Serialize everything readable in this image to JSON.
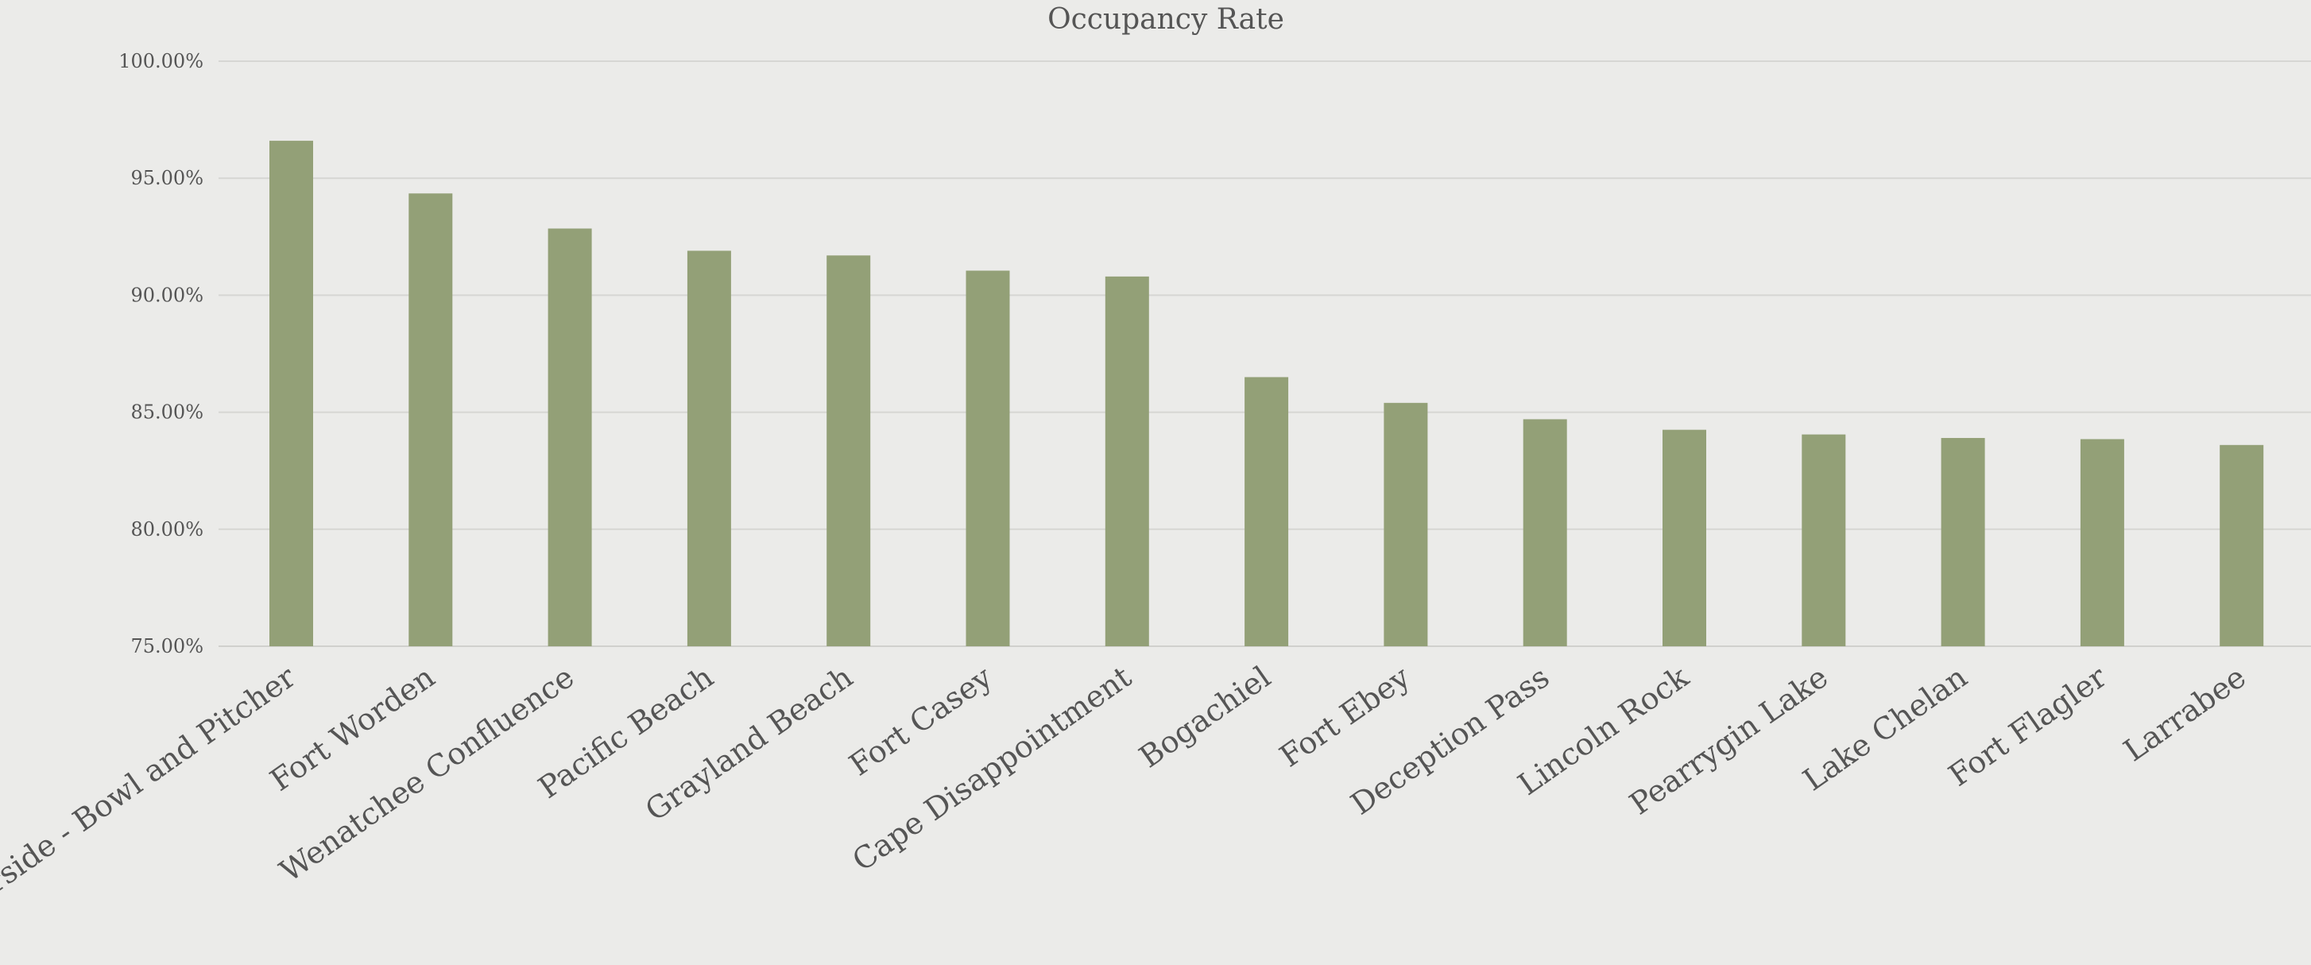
{
  "chart_data": {
    "type": "bar",
    "title": "Occupancy Rate",
    "xlabel": "",
    "ylabel": "",
    "categories": [
      "Riverside - Bowl and Pitcher",
      "Fort Worden",
      "Wenatchee Confluence",
      "Pacific Beach",
      "Grayland Beach",
      "Fort Casey",
      "Cape Disappointment",
      "Bogachiel",
      "Fort Ebey",
      "Deception Pass",
      "Lincoln Rock",
      "Pearrygin Lake",
      "Lake Chelan",
      "Fort Flagler",
      "Larrabee"
    ],
    "values": [
      96.6,
      94.35,
      92.85,
      91.9,
      91.7,
      91.05,
      90.8,
      86.5,
      85.4,
      84.7,
      84.25,
      84.05,
      83.9,
      83.85,
      83.6
    ],
    "ylim": [
      75,
      100
    ],
    "y_ticks": [
      {
        "value": 75,
        "label": "75.00%"
      },
      {
        "value": 80,
        "label": "80.00%"
      },
      {
        "value": 85,
        "label": "85.00%"
      },
      {
        "value": 90,
        "label": "90.00%"
      },
      {
        "value": 95,
        "label": "95.00%"
      },
      {
        "value": 100,
        "label": "100.00%"
      }
    ],
    "grid": true,
    "legend": "none",
    "bar_color": "#93a077",
    "background_color": "#ebebe9",
    "gridline_color": "#d6d6d3",
    "text_color": "#555555"
  }
}
